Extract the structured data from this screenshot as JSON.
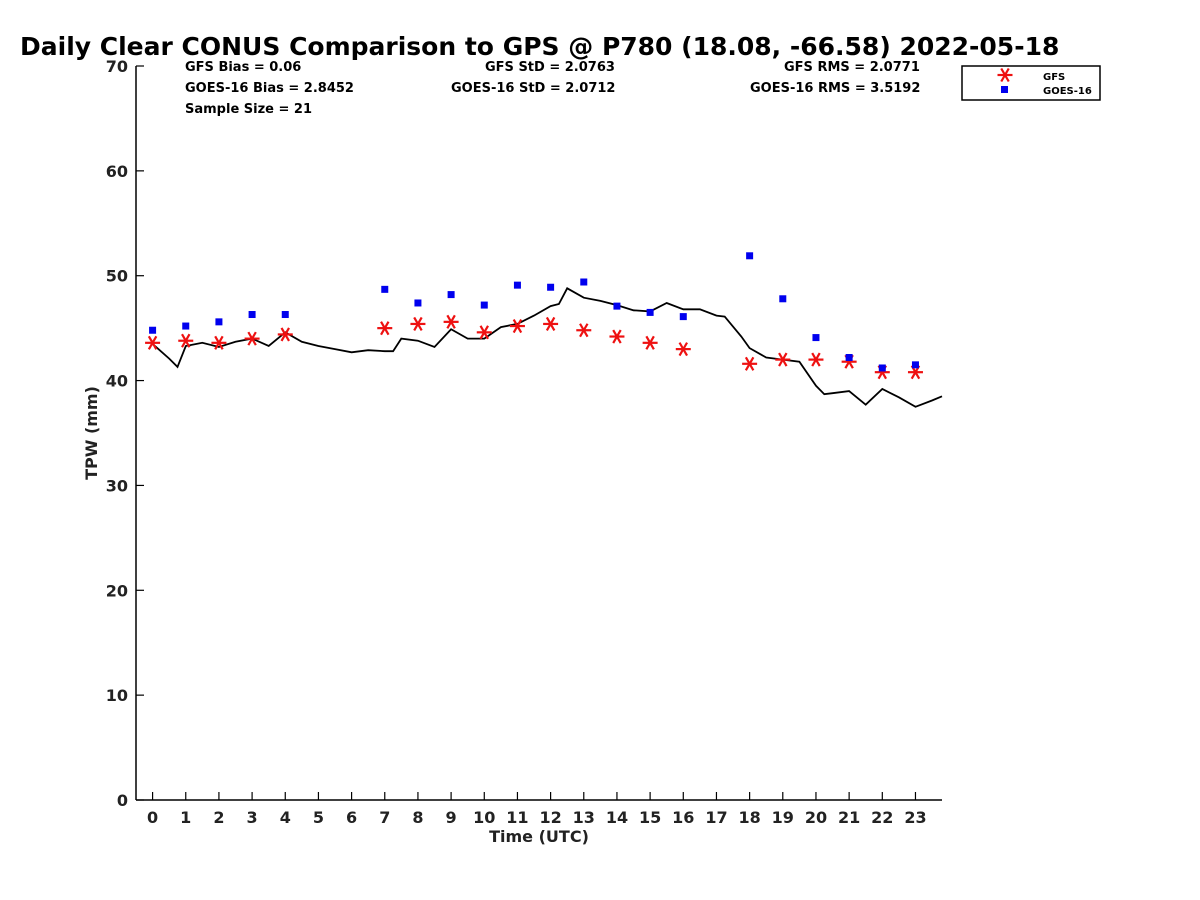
{
  "chart_data": {
    "type": "scatter",
    "title": "Daily Clear CONUS Comparison to GPS @ P780 (18.08, -66.58) 2022-05-18",
    "xlabel": "Time (UTC)",
    "ylabel": "TPW (mm)",
    "xlim": [
      -0.5,
      23.8
    ],
    "ylim": [
      0,
      70
    ],
    "xticks": [
      0,
      1,
      2,
      3,
      4,
      5,
      6,
      7,
      8,
      9,
      10,
      11,
      12,
      13,
      14,
      15,
      16,
      17,
      18,
      19,
      20,
      21,
      22,
      23
    ],
    "yticks": [
      0,
      10,
      20,
      30,
      40,
      50,
      60,
      70
    ],
    "stats": {
      "gfs_bias": "GFS Bias = 0.06",
      "goes_bias": "GOES-16 Bias = 2.8452",
      "sample_size": "Sample Size = 21",
      "gfs_std": "GFS StD = 2.0763",
      "goes_std": "GOES-16 StD = 2.0712",
      "gfs_rms": "GFS RMS = 2.0771",
      "goes_rms": "GOES-16 RMS = 3.5192"
    },
    "legend": {
      "placement": "top-right outside",
      "entries": [
        "GFS",
        "GOES-16"
      ]
    },
    "series": [
      {
        "name": "GPS",
        "style": "line",
        "color": "#000000",
        "x": [
          0,
          0.5,
          0.75,
          1,
          1.5,
          2,
          2.5,
          3,
          3.5,
          4,
          4.5,
          5,
          5.5,
          6,
          6.5,
          7,
          7.25,
          7.5,
          8,
          8.5,
          9,
          9.5,
          10,
          10.5,
          11,
          11.5,
          12,
          12.25,
          12.5,
          13,
          13.5,
          14,
          14.5,
          15,
          15.5,
          16,
          16.5,
          17,
          17.25,
          17.75,
          18,
          18.5,
          19,
          19.5,
          20,
          20.25,
          20.5,
          21,
          21.5,
          22,
          22.5,
          23,
          23.5,
          23.8
        ],
        "y": [
          43.5,
          42.1,
          41.3,
          43.3,
          43.6,
          43.2,
          43.7,
          44.0,
          43.3,
          44.6,
          43.7,
          43.3,
          43.0,
          42.7,
          42.9,
          42.8,
          42.8,
          44.0,
          43.8,
          43.2,
          44.9,
          44.0,
          44.0,
          45.1,
          45.4,
          46.2,
          47.1,
          47.3,
          48.8,
          47.9,
          47.6,
          47.2,
          46.7,
          46.6,
          47.4,
          46.8,
          46.8,
          46.2,
          46.1,
          44.2,
          43.1,
          42.2,
          42.0,
          41.8,
          39.5,
          38.7,
          38.8,
          39.0,
          37.7,
          39.2,
          38.4,
          37.5,
          38.1,
          38.5
        ]
      },
      {
        "name": "GFS",
        "style": "asterisk",
        "color": "#ee1111",
        "x": [
          0,
          1,
          2,
          3,
          4,
          7,
          8,
          9,
          10,
          11,
          12,
          13,
          14,
          15,
          16,
          18,
          19,
          20,
          21,
          22,
          23
        ],
        "y": [
          43.6,
          43.8,
          43.6,
          44.0,
          44.4,
          45.0,
          45.4,
          45.6,
          44.6,
          45.2,
          45.4,
          44.8,
          44.2,
          43.6,
          43.0,
          41.6,
          42.0,
          42.0,
          41.8,
          40.8,
          40.8
        ]
      },
      {
        "name": "GOES-16",
        "style": "square",
        "color": "#0000ee",
        "x": [
          0,
          1,
          2,
          3,
          4,
          7,
          8,
          9,
          10,
          11,
          12,
          13,
          14,
          15,
          16,
          18,
          19,
          20,
          21,
          22,
          23
        ],
        "y": [
          44.8,
          45.2,
          45.6,
          46.3,
          46.3,
          48.7,
          47.4,
          48.2,
          47.2,
          49.1,
          48.9,
          49.4,
          47.1,
          46.5,
          46.1,
          51.9,
          47.8,
          44.1,
          42.2,
          41.2,
          41.5
        ]
      }
    ]
  }
}
